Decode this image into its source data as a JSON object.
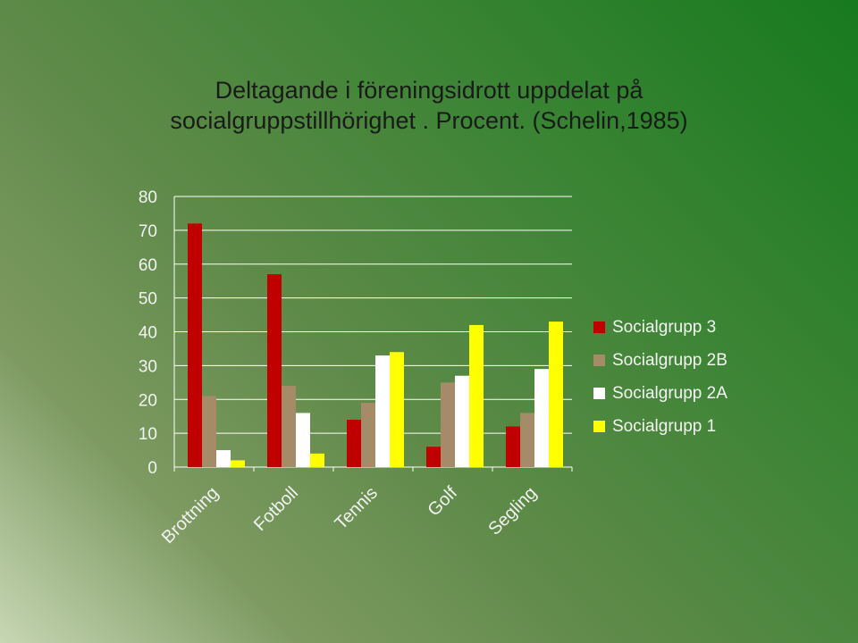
{
  "title_line1": "Deltagande i föreningsidrott uppdelat på",
  "title_line2": "socialgruppstillhörighet . Procent. (Schelin,1985)",
  "chart_data": {
    "type": "bar",
    "title": "Deltagande i föreningsidrott uppdelat på socialgruppstillhörighet . Procent. (Schelin,1985)",
    "categories": [
      "Brottning",
      "Fotboll",
      "Tennis",
      "Golf",
      "Segling"
    ],
    "series": [
      {
        "name": "Socialgrupp 3",
        "color": "#c00000",
        "values": [
          72,
          57,
          14,
          6,
          12
        ]
      },
      {
        "name": "Socialgrupp 2B",
        "color": "#a68b68",
        "values": [
          21,
          24,
          19,
          25,
          16
        ]
      },
      {
        "name": "Socialgrupp 2A",
        "color": "#ffffff",
        "values": [
          5,
          16,
          33,
          27,
          29
        ]
      },
      {
        "name": "Socialgrupp 1",
        "color": "#ffff00",
        "values": [
          2,
          4,
          34,
          42,
          43
        ]
      }
    ],
    "ylim": [
      0,
      80
    ],
    "yticks": [
      0,
      10,
      20,
      30,
      40,
      50,
      60,
      70,
      80
    ],
    "grid": true,
    "legend": "right"
  }
}
